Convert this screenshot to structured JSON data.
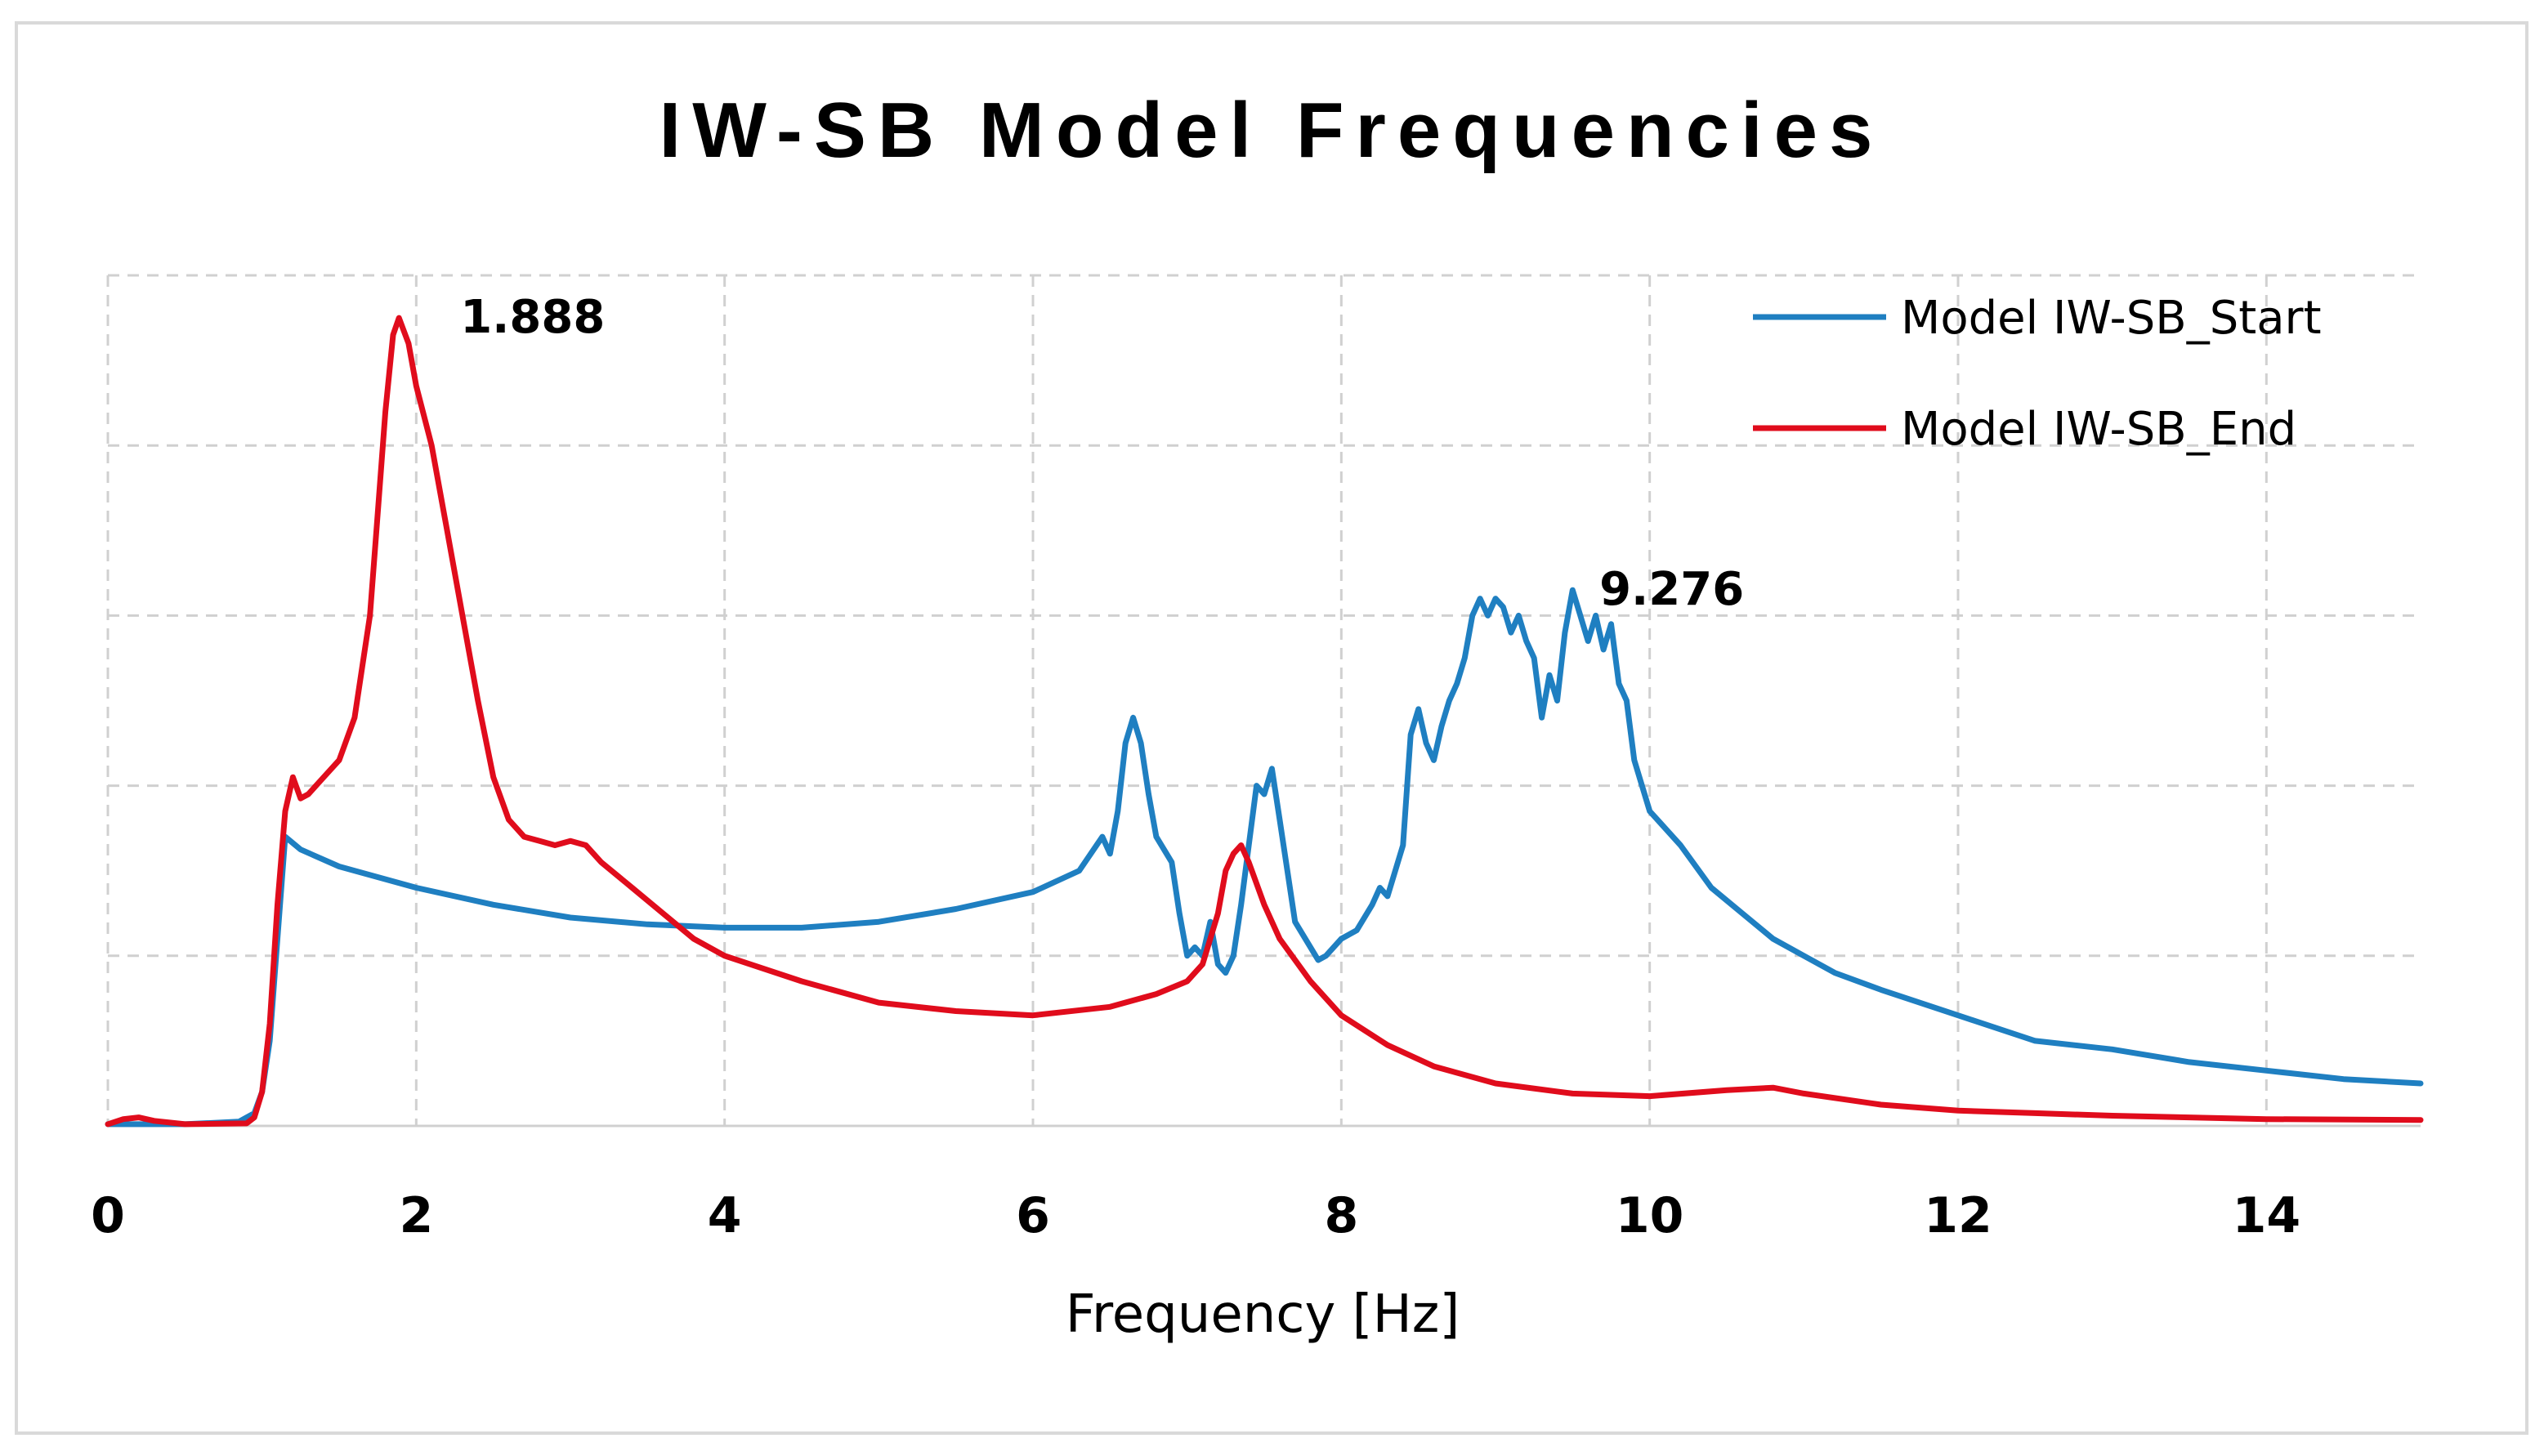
{
  "chart_data": {
    "type": "line",
    "title": "IW-SB Model Frequencies",
    "xlabel": "Frequency [Hz]",
    "ylabel": "",
    "xlim": [
      0,
      15
    ],
    "ylim": [
      0,
      1
    ],
    "x_ticks": [
      0,
      2,
      4,
      6,
      8,
      10,
      12,
      14
    ],
    "x_tick_labels": [
      "0",
      "2",
      "4",
      "6",
      "8",
      "10",
      "12",
      "14"
    ],
    "y_ticks": [
      0.2,
      0.4,
      0.6,
      0.8,
      1.0
    ],
    "grid": true,
    "legend_position": "top-right",
    "series": [
      {
        "name": "Model IW-SB_Start",
        "color": "#1f7fc1",
        "points": [
          [
            0,
            0.002
          ],
          [
            0.5,
            0.002
          ],
          [
            0.85,
            0.005
          ],
          [
            0.95,
            0.015
          ],
          [
            1.0,
            0.04
          ],
          [
            1.05,
            0.1
          ],
          [
            1.1,
            0.22
          ],
          [
            1.15,
            0.34
          ],
          [
            1.25,
            0.325
          ],
          [
            1.5,
            0.305
          ],
          [
            2.0,
            0.28
          ],
          [
            2.5,
            0.26
          ],
          [
            3.0,
            0.245
          ],
          [
            3.5,
            0.237
          ],
          [
            4.0,
            0.233
          ],
          [
            4.5,
            0.233
          ],
          [
            5.0,
            0.24
          ],
          [
            5.5,
            0.255
          ],
          [
            6.0,
            0.275
          ],
          [
            6.3,
            0.3
          ],
          [
            6.45,
            0.34
          ],
          [
            6.5,
            0.32
          ],
          [
            6.55,
            0.37
          ],
          [
            6.6,
            0.45
          ],
          [
            6.65,
            0.48
          ],
          [
            6.7,
            0.45
          ],
          [
            6.75,
            0.39
          ],
          [
            6.8,
            0.34
          ],
          [
            6.9,
            0.31
          ],
          [
            6.95,
            0.25
          ],
          [
            7.0,
            0.2
          ],
          [
            7.05,
            0.21
          ],
          [
            7.1,
            0.2
          ],
          [
            7.15,
            0.24
          ],
          [
            7.2,
            0.19
          ],
          [
            7.25,
            0.18
          ],
          [
            7.3,
            0.2
          ],
          [
            7.35,
            0.26
          ],
          [
            7.4,
            0.33
          ],
          [
            7.45,
            0.4
          ],
          [
            7.5,
            0.39
          ],
          [
            7.55,
            0.42
          ],
          [
            7.6,
            0.36
          ],
          [
            7.65,
            0.3
          ],
          [
            7.7,
            0.24
          ],
          [
            7.8,
            0.21
          ],
          [
            7.85,
            0.195
          ],
          [
            7.9,
            0.2
          ],
          [
            8.0,
            0.22
          ],
          [
            8.1,
            0.23
          ],
          [
            8.2,
            0.26
          ],
          [
            8.25,
            0.28
          ],
          [
            8.3,
            0.27
          ],
          [
            8.4,
            0.33
          ],
          [
            8.45,
            0.46
          ],
          [
            8.5,
            0.49
          ],
          [
            8.55,
            0.45
          ],
          [
            8.6,
            0.43
          ],
          [
            8.65,
            0.47
          ],
          [
            8.7,
            0.5
          ],
          [
            8.75,
            0.52
          ],
          [
            8.8,
            0.55
          ],
          [
            8.85,
            0.6
          ],
          [
            8.9,
            0.62
          ],
          [
            8.95,
            0.6
          ],
          [
            9.0,
            0.62
          ],
          [
            9.05,
            0.61
          ],
          [
            9.1,
            0.58
          ],
          [
            9.15,
            0.6
          ],
          [
            9.2,
            0.57
          ],
          [
            9.25,
            0.55
          ],
          [
            9.3,
            0.48
          ],
          [
            9.35,
            0.53
          ],
          [
            9.4,
            0.5
          ],
          [
            9.45,
            0.58
          ],
          [
            9.5,
            0.63
          ],
          [
            9.55,
            0.6
          ],
          [
            9.6,
            0.57
          ],
          [
            9.65,
            0.6
          ],
          [
            9.7,
            0.56
          ],
          [
            9.75,
            0.59
          ],
          [
            9.8,
            0.52
          ],
          [
            9.85,
            0.5
          ],
          [
            9.9,
            0.43
          ],
          [
            10.0,
            0.37
          ],
          [
            10.2,
            0.33
          ],
          [
            10.4,
            0.28
          ],
          [
            10.6,
            0.25
          ],
          [
            10.8,
            0.22
          ],
          [
            11.0,
            0.2
          ],
          [
            11.2,
            0.18
          ],
          [
            11.5,
            0.16
          ],
          [
            12.0,
            0.13
          ],
          [
            12.5,
            0.1
          ],
          [
            13.0,
            0.09
          ],
          [
            13.5,
            0.075
          ],
          [
            14.0,
            0.065
          ],
          [
            14.5,
            0.055
          ],
          [
            15.0,
            0.05
          ]
        ]
      },
      {
        "name": "Model IW-SB_End",
        "color": "#e00c1c",
        "points": [
          [
            0,
            0.002
          ],
          [
            0.1,
            0.008
          ],
          [
            0.2,
            0.01
          ],
          [
            0.3,
            0.006
          ],
          [
            0.5,
            0.002
          ],
          [
            0.9,
            0.003
          ],
          [
            0.95,
            0.01
          ],
          [
            1.0,
            0.04
          ],
          [
            1.05,
            0.12
          ],
          [
            1.1,
            0.26
          ],
          [
            1.15,
            0.37
          ],
          [
            1.2,
            0.41
          ],
          [
            1.25,
            0.385
          ],
          [
            1.3,
            0.39
          ],
          [
            1.4,
            0.41
          ],
          [
            1.5,
            0.43
          ],
          [
            1.6,
            0.48
          ],
          [
            1.7,
            0.6
          ],
          [
            1.75,
            0.72
          ],
          [
            1.8,
            0.84
          ],
          [
            1.85,
            0.93
          ],
          [
            1.888,
            0.95
          ],
          [
            1.95,
            0.92
          ],
          [
            2.0,
            0.87
          ],
          [
            2.1,
            0.8
          ],
          [
            2.2,
            0.7
          ],
          [
            2.3,
            0.6
          ],
          [
            2.4,
            0.5
          ],
          [
            2.5,
            0.41
          ],
          [
            2.6,
            0.36
          ],
          [
            2.7,
            0.34
          ],
          [
            2.8,
            0.335
          ],
          [
            2.9,
            0.33
          ],
          [
            3.0,
            0.335
          ],
          [
            3.1,
            0.33
          ],
          [
            3.2,
            0.31
          ],
          [
            3.4,
            0.28
          ],
          [
            3.6,
            0.25
          ],
          [
            3.8,
            0.22
          ],
          [
            4.0,
            0.2
          ],
          [
            4.5,
            0.17
          ],
          [
            5.0,
            0.145
          ],
          [
            5.5,
            0.135
          ],
          [
            6.0,
            0.13
          ],
          [
            6.5,
            0.14
          ],
          [
            6.8,
            0.155
          ],
          [
            7.0,
            0.17
          ],
          [
            7.1,
            0.19
          ],
          [
            7.2,
            0.25
          ],
          [
            7.25,
            0.3
          ],
          [
            7.3,
            0.32
          ],
          [
            7.35,
            0.33
          ],
          [
            7.4,
            0.31
          ],
          [
            7.5,
            0.26
          ],
          [
            7.6,
            0.22
          ],
          [
            7.8,
            0.17
          ],
          [
            8.0,
            0.13
          ],
          [
            8.3,
            0.095
          ],
          [
            8.6,
            0.07
          ],
          [
            9.0,
            0.05
          ],
          [
            9.5,
            0.038
          ],
          [
            10.0,
            0.035
          ],
          [
            10.5,
            0.042
          ],
          [
            10.8,
            0.045
          ],
          [
            11.0,
            0.038
          ],
          [
            11.5,
            0.025
          ],
          [
            12.0,
            0.018
          ],
          [
            12.5,
            0.015
          ],
          [
            13.0,
            0.012
          ],
          [
            13.5,
            0.01
          ],
          [
            14.0,
            0.008
          ],
          [
            15.0,
            0.007
          ]
        ]
      }
    ],
    "annotations": [
      {
        "text": "1.888",
        "x": 1.888,
        "y": 0.95,
        "series": "Model IW-SB_End"
      },
      {
        "text": "9.276",
        "x": 9.276,
        "y": 0.63,
        "series": "Model IW-SB_Start"
      }
    ]
  }
}
